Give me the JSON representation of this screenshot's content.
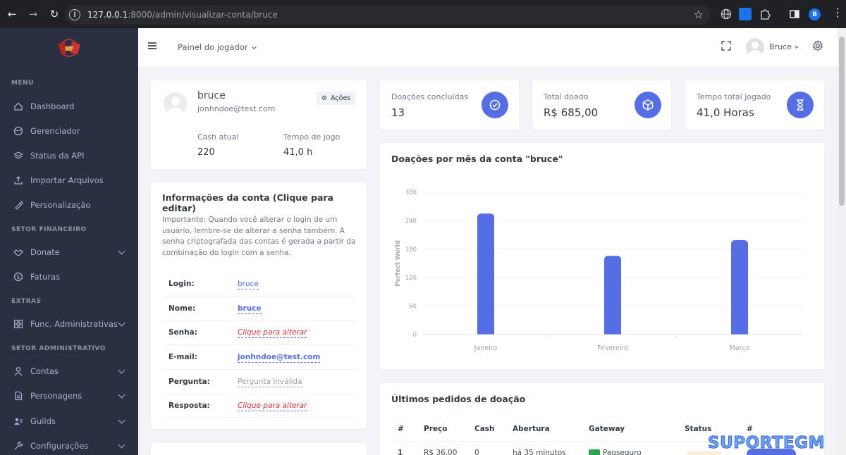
{
  "browser": {
    "url_host": "127.0.0.1",
    "url_path": ":8000/admin/visualizar-conta/bruce",
    "profile_initial": "B"
  },
  "sidebar": {
    "sections": {
      "menu": "MENU",
      "financeiro": "SETOR FINANCEIRO",
      "extras": "EXTRAS",
      "administrativo": "SETOR ADMINISTRATIVO"
    },
    "items": [
      {
        "label": "Dashboard",
        "icon": "home-icon"
      },
      {
        "label": "Gerenciador",
        "icon": "globe-icon"
      },
      {
        "label": "Status da API",
        "icon": "stack-icon"
      },
      {
        "label": "Importar Arquivos",
        "icon": "upload-icon"
      },
      {
        "label": "Personalização",
        "icon": "brush-icon"
      },
      {
        "label": "Donate",
        "icon": "handshake-icon"
      },
      {
        "label": "Faturas",
        "icon": "dollar-icon"
      },
      {
        "label": "Func. Administrativas",
        "icon": "grid-icon"
      },
      {
        "label": "Contas",
        "icon": "user-icon"
      },
      {
        "label": "Personagens",
        "icon": "document-icon"
      },
      {
        "label": "Guilds",
        "icon": "users-icon"
      },
      {
        "label": "Configurações",
        "icon": "wrench-icon"
      }
    ]
  },
  "topbar": {
    "painel": "Painel do jogador",
    "user": "Bruce"
  },
  "profile": {
    "name": "bruce",
    "email": "jonhndoe@test.com",
    "actions": "Ações",
    "cash_label": "Cash atual",
    "cash_value": "220",
    "time_label": "Tempo de jogo",
    "time_value": "41,0 h"
  },
  "account_info": {
    "title": "Informações da conta (Clique para editar)",
    "note": "Importante: Quando você alterar o login de um usuário, lembre-se de alterar a senha também. A senha criptografada das contas é gerada a partir da combinação do login com a senha.",
    "rows": [
      {
        "label": "Login:",
        "value": "bruce"
      },
      {
        "label": "Nome:",
        "value": "bruce"
      },
      {
        "label": "Senha:",
        "value": "Clique para alterar"
      },
      {
        "label": "E-mail:",
        "value": "jonhndoe@test.com"
      },
      {
        "label": "Pergunta:",
        "value": "Pergunta inválida"
      },
      {
        "label": "Resposta:",
        "value": "Clique para alterar"
      }
    ]
  },
  "kpis": [
    {
      "label": "Doações concluídas",
      "value": "13",
      "icon": "check-circle-icon"
    },
    {
      "label": "Total doado",
      "value": "R$ 685,00",
      "icon": "package-icon"
    },
    {
      "label": "Tempo total jogado",
      "value": "41,0 Horas",
      "icon": "hourglass-icon"
    }
  ],
  "chart_title": "Doações por mês da conta \"bruce\"",
  "chart_data": {
    "type": "bar",
    "categories": [
      "Janeiro",
      "Fevereiro",
      "Março"
    ],
    "series": [
      {
        "values": [
          255,
          166,
          199
        ]
      }
    ],
    "ylabel": "Perfect World",
    "ylim": [
      0,
      300
    ],
    "yticks": [
      "0",
      "60",
      "120",
      "180",
      "240",
      "300"
    ],
    "color": "#556ee6",
    "grid": true
  },
  "orders": {
    "title": "Últimos pedidos de doação",
    "headers": [
      "#",
      "Preço",
      "Cash",
      "Abertura",
      "Gateway",
      "Status",
      "#"
    ],
    "first_row": {
      "id": "1",
      "price": "R$ 36,00",
      "cash": "0",
      "opened": "há 35 minutos",
      "gateway": "Pagseguro"
    }
  },
  "watermark": "SUPORTEGM"
}
